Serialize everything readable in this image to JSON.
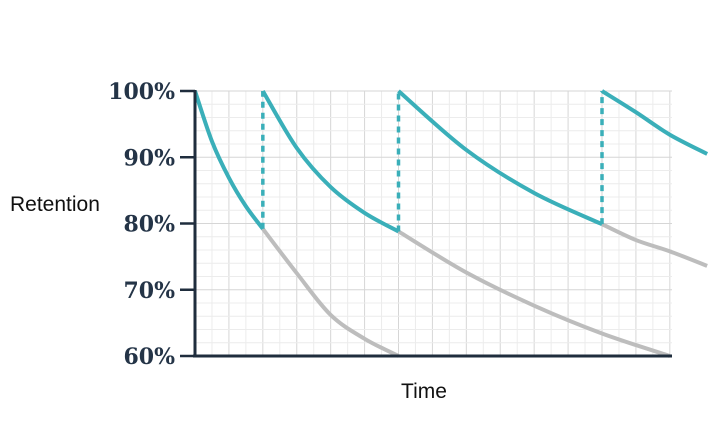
{
  "chart_data": {
    "type": "line",
    "title": "",
    "xlabel": "Time",
    "ylabel": "Retention",
    "ylim": [
      60,
      100
    ],
    "y_ticks": [
      {
        "value": 100,
        "label": "100%"
      },
      {
        "value": 90,
        "label": "90%"
      },
      {
        "value": 80,
        "label": "80%"
      },
      {
        "value": 70,
        "label": "70%"
      },
      {
        "value": 60,
        "label": "60%"
      }
    ],
    "x_unit_note": "time axis has no printed ticks; x values are relative time units",
    "xlim": [
      0,
      7
    ],
    "grid": true,
    "colors": {
      "retained": "#3aafb9",
      "decay_without_review": "#bdbdbd",
      "axis": "#1f2d3d",
      "grid_major": "#d6d6d6",
      "grid_minor": "#ececec"
    },
    "series": [
      {
        "style": "retained",
        "points": [
          [
            0,
            100
          ],
          [
            0.25,
            92.4
          ],
          [
            0.5,
            86.9
          ],
          [
            0.75,
            82.6
          ],
          [
            1,
            79.2
          ]
        ]
      },
      {
        "style": "review",
        "points": [
          [
            1,
            79.2
          ],
          [
            1,
            100
          ]
        ]
      },
      {
        "style": "retained",
        "points": [
          [
            1,
            100
          ],
          [
            1.5,
            91.4
          ],
          [
            2,
            85.5
          ],
          [
            2.5,
            81.6
          ],
          [
            3,
            78.8
          ]
        ]
      },
      {
        "style": "review",
        "points": [
          [
            3,
            78.8
          ],
          [
            3,
            100
          ]
        ]
      },
      {
        "style": "retained",
        "points": [
          [
            3,
            100
          ],
          [
            4,
            91.1
          ],
          [
            5,
            84.6
          ],
          [
            6,
            79.9
          ]
        ]
      },
      {
        "style": "review",
        "points": [
          [
            6,
            79.9
          ],
          [
            6,
            100
          ]
        ]
      },
      {
        "style": "retained",
        "points": [
          [
            6,
            100
          ],
          [
            6.5,
            96.8
          ],
          [
            7,
            93.4
          ],
          [
            7.55,
            90.5
          ]
        ]
      },
      {
        "style": "decay",
        "points": [
          [
            1,
            79.2
          ],
          [
            1.5,
            72.5
          ],
          [
            2,
            66.2
          ],
          [
            2.5,
            62.6
          ],
          [
            3,
            60
          ]
        ]
      },
      {
        "style": "decay",
        "points": [
          [
            3,
            78.8
          ],
          [
            4,
            72.6
          ],
          [
            5,
            67.6
          ],
          [
            6,
            63.4
          ],
          [
            7,
            60
          ]
        ]
      },
      {
        "style": "decay",
        "points": [
          [
            6,
            79.9
          ],
          [
            6.5,
            77.5
          ],
          [
            7,
            75.8
          ],
          [
            7.55,
            73.6
          ]
        ]
      }
    ]
  }
}
